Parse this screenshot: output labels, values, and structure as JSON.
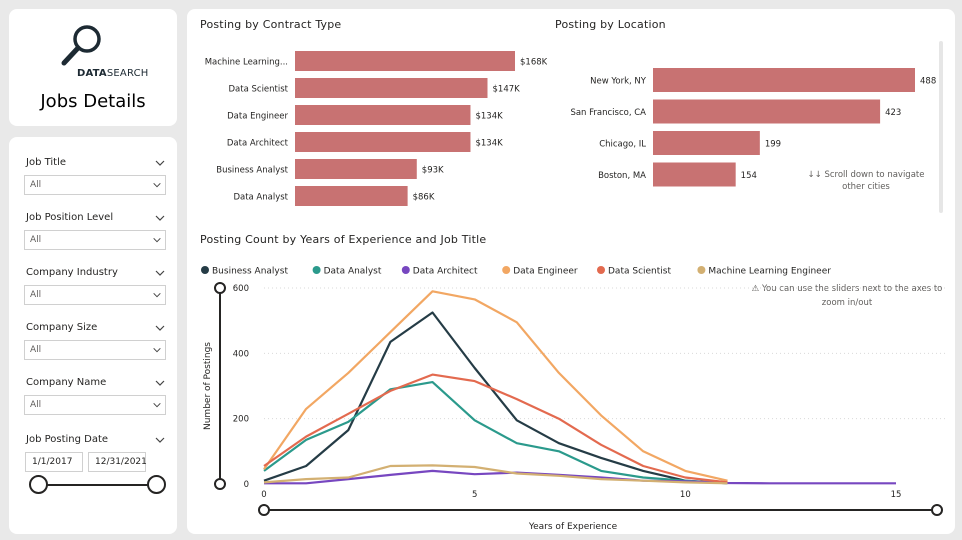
{
  "header": {
    "brand_bold": "DATA",
    "brand_rest": "SEARCH",
    "page_title": "Jobs Details"
  },
  "filters": [
    {
      "label": "Job Title",
      "value": "All"
    },
    {
      "label": "Job Position Level",
      "value": "All"
    },
    {
      "label": "Company Industry",
      "value": "All"
    },
    {
      "label": "Company Size",
      "value": "All"
    },
    {
      "label": "Company Name",
      "value": "All"
    }
  ],
  "date_filter": {
    "label": "Job Posting Date",
    "start": "1/1/2017",
    "end": "12/31/2021",
    "range_start_fraction": 0,
    "range_end_fraction": 1
  },
  "colors": {
    "bar": "#c87272",
    "Business Analyst": "#253c46",
    "Data Analyst": "#2b9a8c",
    "Data Architect": "#7747c0",
    "Data Engineer": "#f2a763",
    "Data Scientist": "#e36a4f",
    "Machine Learning Engineer": "#d3b072"
  },
  "chart_data": [
    {
      "type": "bar",
      "title": "Posting by Contract Type",
      "orientation": "horizontal",
      "categories": [
        "Machine Learning...",
        "Data Scientist",
        "Data Engineer",
        "Data Architect",
        "Business Analyst",
        "Data Analyst"
      ],
      "values": [
        168,
        147,
        134,
        134,
        93,
        86
      ],
      "data_labels": [
        "$168K",
        "$147K",
        "$134K",
        "$134K",
        "$93K",
        "$86K"
      ],
      "xlim": [
        0,
        168
      ]
    },
    {
      "type": "bar",
      "title": "Posting by Location",
      "orientation": "horizontal",
      "categories": [
        "New York, NY",
        "San Francisco, CA",
        "Chicago, IL",
        "Boston, MA"
      ],
      "values": [
        488,
        423,
        199,
        154
      ],
      "data_labels": [
        "488",
        "423",
        "199",
        "154"
      ],
      "xlim": [
        0,
        488
      ],
      "note": "↓↓ Scroll down to navigate other cities"
    },
    {
      "type": "line",
      "title": "Posting Count by Years of Experience and Job Title",
      "xlabel": "Years of Experience",
      "ylabel": "Number of Postings",
      "xlim": [
        0,
        15
      ],
      "ylim": [
        0,
        600
      ],
      "xticks": [
        0,
        5,
        10,
        15
      ],
      "yticks": [
        0,
        200,
        400,
        600
      ],
      "legend_position": "top",
      "note": "⚠ You can use the sliders next to the axes to zoom in/out",
      "x": [
        0,
        1,
        2,
        3,
        4,
        5,
        6,
        7,
        8,
        9,
        10,
        11,
        12,
        13,
        14,
        15
      ],
      "series": [
        {
          "name": "Business Analyst",
          "values": [
            10,
            55,
            165,
            435,
            525,
            355,
            195,
            125,
            80,
            40,
            10,
            2,
            null,
            null,
            null,
            null
          ]
        },
        {
          "name": "Data Analyst",
          "values": [
            40,
            135,
            190,
            290,
            312,
            195,
            125,
            100,
            40,
            20,
            10,
            2,
            null,
            null,
            null,
            null
          ]
        },
        {
          "name": "Data Architect",
          "values": [
            2,
            2,
            15,
            28,
            40,
            30,
            35,
            28,
            20,
            10,
            8,
            3,
            2,
            2,
            2,
            2
          ]
        },
        {
          "name": "Data Engineer",
          "values": [
            45,
            230,
            340,
            465,
            590,
            565,
            495,
            340,
            210,
            100,
            40,
            10,
            null,
            null,
            null,
            null
          ]
        },
        {
          "name": "Data Scientist",
          "values": [
            55,
            145,
            215,
            285,
            335,
            315,
            260,
            200,
            120,
            55,
            20,
            5,
            null,
            null,
            null,
            null
          ]
        },
        {
          "name": "Machine Learning Engineer",
          "values": [
            5,
            15,
            20,
            55,
            57,
            52,
            32,
            25,
            15,
            10,
            5,
            2,
            null,
            null,
            null,
            null
          ]
        }
      ]
    }
  ]
}
